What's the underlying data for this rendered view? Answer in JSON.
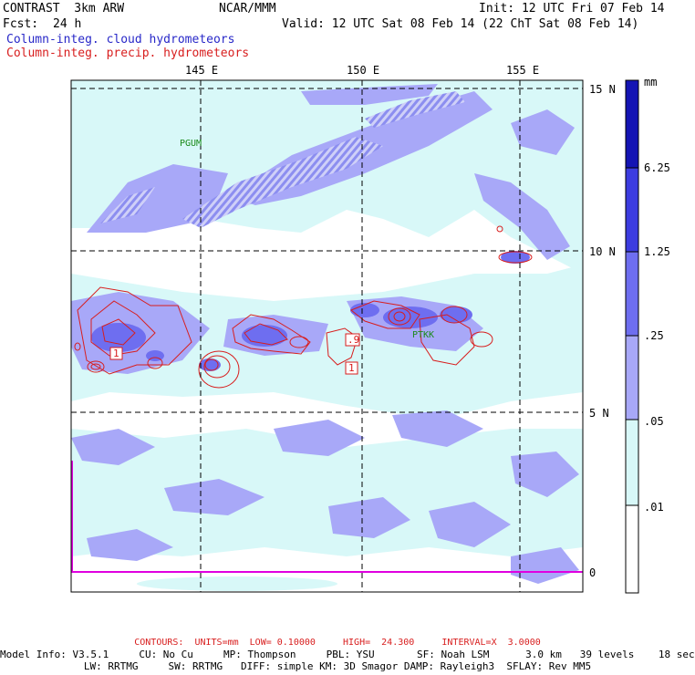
{
  "header": {
    "title": "CONTRAST  3km ARW",
    "org": "NCAR/MMM",
    "init": "Init: 12 UTC Fri 07 Feb 14",
    "fcst_label": "Fcst:",
    "fcst_value": "24 h",
    "valid": "Valid: 12 UTC Sat 08 Feb 14 (22 ChT Sat 08 Feb 14)",
    "legend_cloud": "Column-integ. cloud hydrometeors",
    "legend_precip": "Column-integ. precip. hydrometeors"
  },
  "axes": {
    "lon_labels": [
      "145 E",
      "150 E",
      "155 E"
    ],
    "lat_labels": [
      "15 N",
      "10 N",
      "5 N",
      "0"
    ]
  },
  "stations": [
    "PGUM",
    "PTKK"
  ],
  "contour_labels": [
    "1",
    ".9",
    "1"
  ],
  "colorbar": {
    "unit": "mm",
    "levels": [
      "6.25",
      "1.25",
      ".25",
      ".05",
      ".01"
    ],
    "colors": [
      "#1414b4",
      "#3c3ce0",
      "#6e6ef0",
      "#a8a8f8",
      "#d8f8f8",
      "#ffffff"
    ]
  },
  "footer": {
    "contours_line": "CONTOURS:  UNITS=mm  LOW= 0.10000     HIGH=  24.300     INTERVAL=X  3.0000",
    "model_line1": "Model Info: V3.5.1     CU: No Cu     MP: Thompson     PBL: YSU       SF: Noah LSM      3.0 km   39 levels    18 sec",
    "model_line2": "LW: RRTMG     SW: RRTMG   DIFF: simple KM: 3D Smagor DAMP: Rayleigh3  SFLAY: Rev MM5"
  }
}
